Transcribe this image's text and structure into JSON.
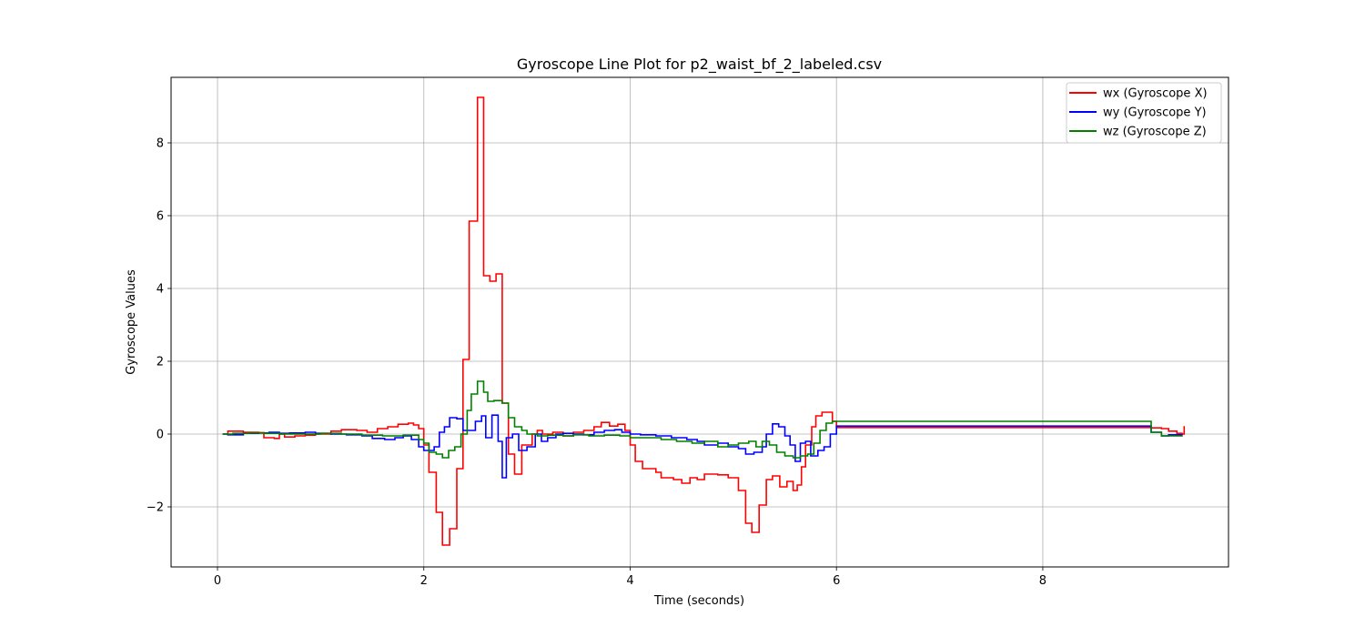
{
  "chart_data": {
    "type": "line",
    "title": "Gyroscope Line Plot for p2_waist_bf_2_labeled.csv",
    "xlabel": "Time (seconds)",
    "ylabel": "Gyroscope Values",
    "xlim": [
      -0.45,
      9.8
    ],
    "ylim": [
      -3.65,
      9.8
    ],
    "xticks": [
      0,
      2,
      4,
      6,
      8
    ],
    "yticks": [
      -2,
      0,
      2,
      4,
      6,
      8
    ],
    "grid": true,
    "legend_position": "top-right",
    "step": true,
    "series": [
      {
        "name": "wx (Gyroscope X)",
        "color": "#ff0000",
        "points": [
          [
            0.05,
            0.0
          ],
          [
            0.1,
            0.08
          ],
          [
            0.25,
            0.05
          ],
          [
            0.4,
            0.04
          ],
          [
            0.45,
            -0.1
          ],
          [
            0.55,
            -0.12
          ],
          [
            0.6,
            0.0
          ],
          [
            0.65,
            -0.08
          ],
          [
            0.75,
            -0.05
          ],
          [
            0.85,
            -0.03
          ],
          [
            0.95,
            0.0
          ],
          [
            1.1,
            0.08
          ],
          [
            1.2,
            0.12
          ],
          [
            1.35,
            0.1
          ],
          [
            1.45,
            0.05
          ],
          [
            1.55,
            0.15
          ],
          [
            1.65,
            0.2
          ],
          [
            1.75,
            0.27
          ],
          [
            1.85,
            0.3
          ],
          [
            1.9,
            0.25
          ],
          [
            1.95,
            0.15
          ],
          [
            2.0,
            -0.3
          ],
          [
            2.05,
            -1.05
          ],
          [
            2.12,
            -2.15
          ],
          [
            2.18,
            -3.05
          ],
          [
            2.25,
            -2.6
          ],
          [
            2.32,
            -0.95
          ],
          [
            2.38,
            2.05
          ],
          [
            2.44,
            5.85
          ],
          [
            2.52,
            9.25
          ],
          [
            2.58,
            4.35
          ],
          [
            2.64,
            4.2
          ],
          [
            2.7,
            4.4
          ],
          [
            2.76,
            0.85
          ],
          [
            2.82,
            -0.55
          ],
          [
            2.88,
            -1.1
          ],
          [
            2.95,
            -0.3
          ],
          [
            3.05,
            0.0
          ],
          [
            3.1,
            0.1
          ],
          [
            3.15,
            0.0
          ],
          [
            3.25,
            0.05
          ],
          [
            3.35,
            -0.05
          ],
          [
            3.45,
            0.05
          ],
          [
            3.55,
            0.1
          ],
          [
            3.65,
            0.2
          ],
          [
            3.72,
            0.32
          ],
          [
            3.8,
            0.22
          ],
          [
            3.88,
            0.27
          ],
          [
            3.95,
            0.1
          ],
          [
            4.0,
            -0.3
          ],
          [
            4.05,
            -0.75
          ],
          [
            4.12,
            -0.95
          ],
          [
            4.25,
            -1.05
          ],
          [
            4.3,
            -1.2
          ],
          [
            4.42,
            -1.25
          ],
          [
            4.5,
            -1.35
          ],
          [
            4.58,
            -1.2
          ],
          [
            4.65,
            -1.25
          ],
          [
            4.72,
            -1.1
          ],
          [
            4.85,
            -1.12
          ],
          [
            4.95,
            -1.2
          ],
          [
            5.05,
            -1.55
          ],
          [
            5.12,
            -2.45
          ],
          [
            5.18,
            -2.7
          ],
          [
            5.25,
            -1.95
          ],
          [
            5.32,
            -1.25
          ],
          [
            5.38,
            -1.15
          ],
          [
            5.45,
            -1.45
          ],
          [
            5.52,
            -1.3
          ],
          [
            5.58,
            -1.55
          ],
          [
            5.62,
            -1.4
          ],
          [
            5.66,
            -0.9
          ],
          [
            5.7,
            -0.3
          ],
          [
            5.76,
            0.2
          ],
          [
            5.8,
            0.5
          ],
          [
            5.86,
            0.6
          ],
          [
            5.9,
            0.6
          ],
          [
            5.96,
            0.35
          ],
          [
            6.0,
            0.18
          ],
          [
            9.0,
            0.18
          ],
          [
            9.05,
            0.17
          ],
          [
            9.15,
            0.15
          ],
          [
            9.22,
            0.08
          ],
          [
            9.3,
            0.02
          ],
          [
            9.35,
            0.0
          ],
          [
            9.37,
            0.22
          ]
        ]
      },
      {
        "name": "wy (Gyroscope Y)",
        "color": "#0000ff",
        "points": [
          [
            0.05,
            0.0
          ],
          [
            0.1,
            -0.02
          ],
          [
            0.25,
            0.02
          ],
          [
            0.4,
            0.03
          ],
          [
            0.5,
            0.05
          ],
          [
            0.6,
            0.02
          ],
          [
            0.7,
            0.03
          ],
          [
            0.85,
            0.05
          ],
          [
            0.95,
            0.02
          ],
          [
            1.1,
            0.0
          ],
          [
            1.25,
            -0.02
          ],
          [
            1.4,
            -0.05
          ],
          [
            1.5,
            -0.12
          ],
          [
            1.62,
            -0.15
          ],
          [
            1.72,
            -0.1
          ],
          [
            1.8,
            -0.05
          ],
          [
            1.88,
            -0.15
          ],
          [
            1.95,
            -0.35
          ],
          [
            2.0,
            -0.45
          ],
          [
            2.05,
            -0.45
          ],
          [
            2.1,
            -0.35
          ],
          [
            2.15,
            0.05
          ],
          [
            2.2,
            0.2
          ],
          [
            2.25,
            0.45
          ],
          [
            2.32,
            0.42
          ],
          [
            2.38,
            0.1
          ],
          [
            2.44,
            0.1
          ],
          [
            2.5,
            0.35
          ],
          [
            2.56,
            0.5
          ],
          [
            2.6,
            -0.1
          ],
          [
            2.66,
            0.52
          ],
          [
            2.72,
            -0.2
          ],
          [
            2.76,
            -1.2
          ],
          [
            2.8,
            -0.1
          ],
          [
            2.86,
            0.0
          ],
          [
            2.92,
            -0.45
          ],
          [
            3.0,
            -0.35
          ],
          [
            3.08,
            0.0
          ],
          [
            3.14,
            -0.2
          ],
          [
            3.2,
            -0.1
          ],
          [
            3.28,
            0.0
          ],
          [
            3.35,
            0.02
          ],
          [
            3.45,
            0.0
          ],
          [
            3.55,
            -0.02
          ],
          [
            3.65,
            0.05
          ],
          [
            3.75,
            0.1
          ],
          [
            3.85,
            0.12
          ],
          [
            3.92,
            0.05
          ],
          [
            4.0,
            0.0
          ],
          [
            4.1,
            -0.02
          ],
          [
            4.25,
            -0.05
          ],
          [
            4.4,
            -0.1
          ],
          [
            4.55,
            -0.15
          ],
          [
            4.65,
            -0.2
          ],
          [
            4.72,
            -0.3
          ],
          [
            4.85,
            -0.25
          ],
          [
            4.95,
            -0.35
          ],
          [
            5.05,
            -0.4
          ],
          [
            5.12,
            -0.55
          ],
          [
            5.2,
            -0.5
          ],
          [
            5.28,
            -0.35
          ],
          [
            5.32,
            0.0
          ],
          [
            5.38,
            0.28
          ],
          [
            5.44,
            0.2
          ],
          [
            5.5,
            -0.05
          ],
          [
            5.55,
            -0.3
          ],
          [
            5.6,
            -0.75
          ],
          [
            5.65,
            -0.25
          ],
          [
            5.7,
            -0.2
          ],
          [
            5.75,
            -0.6
          ],
          [
            5.82,
            -0.45
          ],
          [
            5.88,
            -0.35
          ],
          [
            5.94,
            0.0
          ],
          [
            6.0,
            0.22
          ],
          [
            9.0,
            0.22
          ],
          [
            9.05,
            0.05
          ],
          [
            9.15,
            -0.05
          ],
          [
            9.22,
            -0.02
          ],
          [
            9.35,
            -0.03
          ]
        ]
      },
      {
        "name": "wz (Gyroscope Z)",
        "color": "#008000",
        "points": [
          [
            0.05,
            0.0
          ],
          [
            0.15,
            0.02
          ],
          [
            0.3,
            0.03
          ],
          [
            0.45,
            0.02
          ],
          [
            0.6,
            0.0
          ],
          [
            0.8,
            0.0
          ],
          [
            1.0,
            0.02
          ],
          [
            1.2,
            0.0
          ],
          [
            1.4,
            -0.03
          ],
          [
            1.6,
            -0.05
          ],
          [
            1.8,
            -0.03
          ],
          [
            1.95,
            -0.15
          ],
          [
            2.0,
            -0.25
          ],
          [
            2.05,
            -0.5
          ],
          [
            2.12,
            -0.55
          ],
          [
            2.18,
            -0.65
          ],
          [
            2.24,
            -0.45
          ],
          [
            2.3,
            -0.35
          ],
          [
            2.36,
            0.0
          ],
          [
            2.42,
            0.65
          ],
          [
            2.46,
            1.1
          ],
          [
            2.52,
            1.45
          ],
          [
            2.58,
            1.15
          ],
          [
            2.62,
            0.9
          ],
          [
            2.68,
            0.92
          ],
          [
            2.76,
            0.85
          ],
          [
            2.82,
            0.45
          ],
          [
            2.88,
            0.2
          ],
          [
            2.95,
            0.1
          ],
          [
            3.0,
            0.0
          ],
          [
            3.1,
            -0.05
          ],
          [
            3.2,
            -0.03
          ],
          [
            3.35,
            -0.05
          ],
          [
            3.45,
            -0.02
          ],
          [
            3.6,
            -0.05
          ],
          [
            3.75,
            -0.03
          ],
          [
            3.9,
            -0.05
          ],
          [
            4.0,
            -0.1
          ],
          [
            4.15,
            -0.1
          ],
          [
            4.3,
            -0.15
          ],
          [
            4.45,
            -0.2
          ],
          [
            4.6,
            -0.25
          ],
          [
            4.72,
            -0.2
          ],
          [
            4.85,
            -0.35
          ],
          [
            4.95,
            -0.3
          ],
          [
            5.05,
            -0.25
          ],
          [
            5.15,
            -0.2
          ],
          [
            5.22,
            -0.35
          ],
          [
            5.28,
            -0.2
          ],
          [
            5.35,
            -0.3
          ],
          [
            5.42,
            -0.5
          ],
          [
            5.5,
            -0.6
          ],
          [
            5.58,
            -0.65
          ],
          [
            5.65,
            -0.6
          ],
          [
            5.72,
            -0.55
          ],
          [
            5.78,
            -0.25
          ],
          [
            5.84,
            0.1
          ],
          [
            5.9,
            0.3
          ],
          [
            5.96,
            0.35
          ],
          [
            6.0,
            0.35
          ],
          [
            9.0,
            0.35
          ],
          [
            9.05,
            0.05
          ],
          [
            9.15,
            -0.05
          ],
          [
            9.35,
            -0.03
          ]
        ]
      }
    ]
  }
}
